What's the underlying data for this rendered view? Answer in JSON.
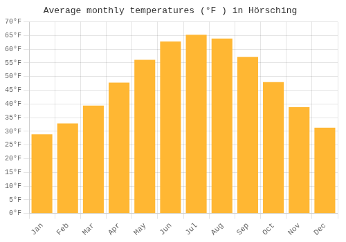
{
  "chart_data": {
    "type": "bar",
    "title": "Average monthly temperatures (°F ) in Hörsching",
    "categories": [
      "Jan",
      "Feb",
      "Mar",
      "Apr",
      "May",
      "Jun",
      "Jul",
      "Aug",
      "Sep",
      "Oct",
      "Nov",
      "Dec"
    ],
    "values": [
      28.9,
      32.9,
      39.4,
      47.8,
      56.1,
      62.8,
      65.3,
      63.9,
      57.2,
      48.0,
      38.8,
      31.3
    ],
    "color": "#FFB733",
    "ylim": [
      0,
      70
    ],
    "yticks": [
      {
        "value": 0,
        "label": "0°F"
      },
      {
        "value": 5,
        "label": "5°F"
      },
      {
        "value": 10,
        "label": "10°F"
      },
      {
        "value": 15,
        "label": "15°F"
      },
      {
        "value": 20,
        "label": "20°F"
      },
      {
        "value": 25,
        "label": "25°F"
      },
      {
        "value": 30,
        "label": "30°F"
      },
      {
        "value": 35,
        "label": "35°F"
      },
      {
        "value": 40,
        "label": "40°F"
      },
      {
        "value": 45,
        "label": "45°F"
      },
      {
        "value": 50,
        "label": "50°F"
      },
      {
        "value": 55,
        "label": "55°F"
      },
      {
        "value": 60,
        "label": "60°F"
      },
      {
        "value": 65,
        "label": "65°F"
      },
      {
        "value": 70,
        "label": "70°F"
      }
    ],
    "grid": true
  }
}
